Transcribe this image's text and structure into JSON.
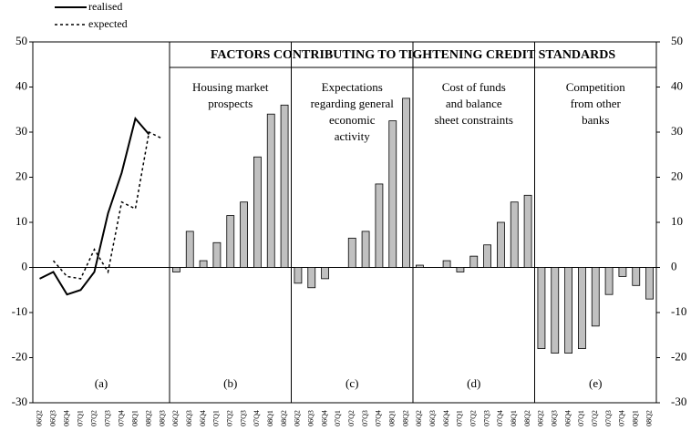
{
  "chart_data": {
    "type": "panels",
    "title": "FACTORS CONTRIBUTING TO TIGHTENING CREDIT STANDARDS",
    "ylim": [
      -30,
      50
    ],
    "yticks": [
      -30,
      -20,
      -10,
      0,
      10,
      20,
      30,
      40,
      50
    ],
    "panels": [
      {
        "type": "line",
        "label": "(a)",
        "categories": [
          "06Q2",
          "06Q3",
          "06Q4",
          "07Q1",
          "07Q2",
          "07Q3",
          "07Q4",
          "08Q1",
          "08Q2",
          "08Q3"
        ],
        "series": [
          {
            "name": "realised",
            "color": "#000000",
            "dashed": false,
            "values": [
              -2.5,
              -1,
              -6,
              -5,
              -1,
              12,
              21,
              33,
              29.5,
              null
            ]
          },
          {
            "name": "expected",
            "color": "#000000",
            "dashed": true,
            "values": [
              null,
              1.5,
              -2,
              -2.5,
              4,
              -1,
              14.5,
              13,
              30,
              28.5
            ]
          }
        ]
      },
      {
        "type": "bar",
        "label": "(b)",
        "title": [
          "Housing market",
          "prospects"
        ],
        "color": "#c0c0c0",
        "categories": [
          "06Q2",
          "06Q3",
          "06Q4",
          "07Q1",
          "07Q2",
          "07Q3",
          "07Q4",
          "08Q1",
          "08Q2"
        ],
        "values": [
          -1,
          8,
          1.5,
          5.5,
          11.5,
          14.5,
          24.5,
          34,
          36
        ]
      },
      {
        "type": "bar",
        "label": "(c)",
        "title": [
          "Expectations",
          "regarding general",
          "economic",
          "activity"
        ],
        "color": "#c0c0c0",
        "categories": [
          "06Q2",
          "06Q3",
          "06Q4",
          "07Q1",
          "07Q2",
          "07Q3",
          "07Q4",
          "08Q1",
          "08Q2"
        ],
        "values": [
          -3.5,
          -4.5,
          -2.5,
          0,
          6.5,
          8,
          18.5,
          32.5,
          37.5
        ]
      },
      {
        "type": "bar",
        "label": "(d)",
        "title": [
          "Cost of funds",
          "and balance",
          "sheet constraints"
        ],
        "color": "#c0c0c0",
        "categories": [
          "06Q2",
          "06Q3",
          "06Q4",
          "07Q1",
          "07Q2",
          "07Q3",
          "07Q4",
          "08Q1",
          "08Q2"
        ],
        "values": [
          0.5,
          0,
          1.5,
          -1,
          2.5,
          5,
          10,
          14.5,
          16
        ]
      },
      {
        "type": "bar",
        "label": "(e)",
        "title": [
          "Competition",
          "from other",
          "banks"
        ],
        "color": "#c0c0c0",
        "categories": [
          "06Q2",
          "06Q3",
          "06Q4",
          "07Q1",
          "07Q2",
          "07Q3",
          "07Q4",
          "08Q1",
          "08Q2"
        ],
        "values": [
          -18,
          -19,
          -19,
          -18,
          -13,
          -6,
          -2,
          -4,
          -7
        ]
      }
    ]
  }
}
